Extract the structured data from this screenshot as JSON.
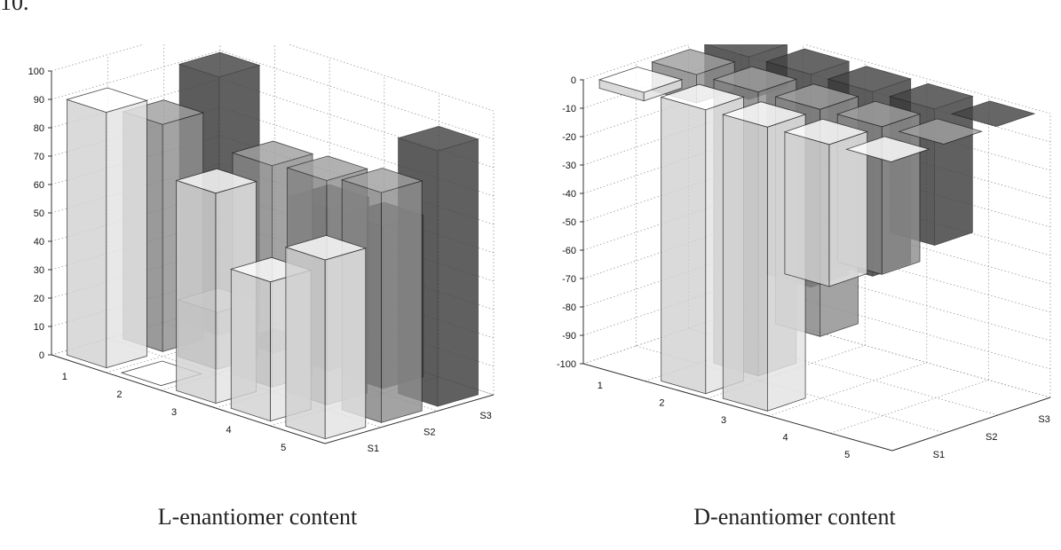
{
  "page": {
    "top_text": "10.",
    "captions": [
      "L-enantiomer content",
      "D-enantiomer content"
    ]
  },
  "chart_data": [
    {
      "type": "bar3d",
      "title": "",
      "rows": [
        "1",
        "2",
        "3",
        "4",
        "5"
      ],
      "columns": [
        "S1",
        "S2",
        "S3"
      ],
      "zlim": [
        0,
        100
      ],
      "zticks": [
        0,
        10,
        20,
        30,
        40,
        50,
        60,
        70,
        80,
        90,
        100
      ],
      "values": [
        [
          90,
          0,
          74,
          49,
          63
        ],
        [
          80,
          20,
          78,
          79,
          81
        ],
        [
          91,
          0,
          57,
          57,
          90
        ]
      ],
      "colors": [
        "#e4e4e4",
        "#8f8f8f",
        "#3e3e3e"
      ],
      "grid": true
    },
    {
      "type": "bar3d",
      "title": "",
      "rows": [
        "1",
        "2",
        "3",
        "4",
        "5"
      ],
      "columns": [
        "S1",
        "S2",
        "S3"
      ],
      "zlim": [
        -100,
        0
      ],
      "zticks": [
        0,
        -10,
        -20,
        -30,
        -40,
        -50,
        -60,
        -70,
        -80,
        -90,
        -100
      ],
      "values": [
        [
          -3,
          -100,
          -100,
          -50,
          0
        ],
        [
          -10,
          -100,
          -80,
          -52,
          0
        ],
        [
          -15,
          -75,
          -65,
          -48,
          0
        ]
      ],
      "colors": [
        "#e4e4e4",
        "#8f8f8f",
        "#3e3e3e"
      ],
      "grid": true
    }
  ]
}
